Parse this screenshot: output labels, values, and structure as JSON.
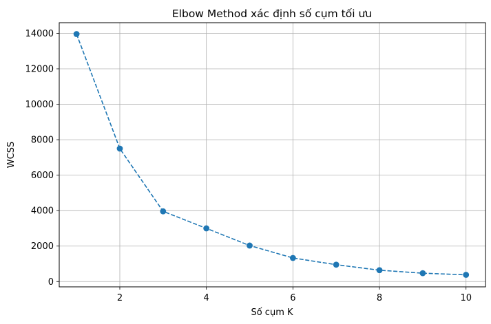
{
  "chart_data": {
    "type": "line",
    "title": "Elbow Method xác định số cụm tối ưu",
    "xlabel": "Số cụm K",
    "ylabel": "WCSS",
    "x": [
      1,
      2,
      3,
      4,
      5,
      6,
      7,
      8,
      9,
      10
    ],
    "series": [
      {
        "values": [
          13960,
          7500,
          3960,
          3000,
          2030,
          1330,
          950,
          640,
          470,
          380
        ],
        "color": "#1f77b4",
        "line_style": "dashed",
        "marker": "circle"
      }
    ],
    "xlim": [
      0.6,
      10.45
    ],
    "ylim": [
      -300,
      14600
    ],
    "xticks": [
      2,
      4,
      6,
      8,
      10
    ],
    "yticks": [
      0,
      2000,
      4000,
      6000,
      8000,
      10000,
      12000,
      14000
    ],
    "grid": true
  }
}
